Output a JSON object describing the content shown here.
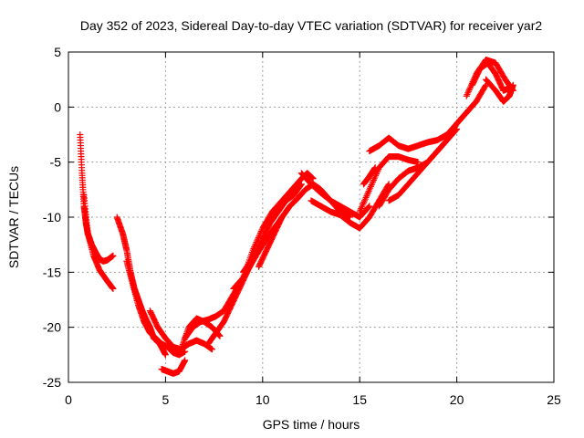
{
  "chart_data": {
    "type": "scatter",
    "title": "Day 352 of 2023, Sidereal Day-to-day VTEC variation (SDTVAR) for receiver yar2",
    "xlabel": "GPS time / hours",
    "ylabel": "SDTVAR / TECUs",
    "xlim": [
      0,
      25
    ],
    "ylim": [
      -25,
      5
    ],
    "xticks": [
      "0",
      "5",
      "10",
      "15",
      "20",
      "25"
    ],
    "yticks": [
      "-25",
      "-20",
      "-15",
      "-10",
      "-5",
      "0",
      "5"
    ],
    "grid": true,
    "marker": "+",
    "series_color": "#ff0000",
    "series": [
      {
        "x": [
          0.6,
          0.7,
          0.8,
          0.9,
          1.0,
          1.2,
          1.4,
          1.6,
          1.8,
          2.0,
          2.3
        ],
        "y": [
          -2.5,
          -6.0,
          -9.0,
          -10.5,
          -11.5,
          -12.5,
          -13.2,
          -13.8,
          -14.0,
          -13.9,
          -13.5
        ]
      },
      {
        "x": [
          0.8,
          1.0,
          1.3,
          1.6,
          2.0,
          2.3
        ],
        "y": [
          -8.0,
          -11.5,
          -13.5,
          -14.8,
          -15.8,
          -16.5
        ]
      },
      {
        "x": [
          2.5,
          2.8,
          3.0,
          3.2,
          3.4,
          3.6,
          3.8,
          4.0,
          4.2,
          4.4,
          4.7,
          5.0
        ],
        "y": [
          -10.0,
          -11.5,
          -13.0,
          -15.0,
          -16.5,
          -17.5,
          -18.5,
          -19.3,
          -20.0,
          -21.0,
          -21.5,
          -22.5
        ]
      },
      {
        "x": [
          3.0,
          3.3,
          3.6,
          3.9,
          4.2,
          4.5,
          4.8,
          5.1,
          5.4,
          5.7,
          6.0
        ],
        "y": [
          -14.0,
          -16.0,
          -18.0,
          -19.5,
          -20.5,
          -21.0,
          -21.5,
          -21.8,
          -22.3,
          -22.5,
          -22.2
        ]
      },
      {
        "x": [
          4.2,
          4.6,
          5.0,
          5.4,
          5.8,
          6.2,
          6.6,
          7.0,
          7.4
        ],
        "y": [
          -18.5,
          -20.0,
          -21.0,
          -21.8,
          -22.0,
          -21.5,
          -21.2,
          -21.5,
          -22.0
        ]
      },
      {
        "x": [
          4.8,
          5.1,
          5.4,
          5.7,
          6.0
        ],
        "y": [
          -23.8,
          -24.0,
          -24.2,
          -24.0,
          -23.0
        ]
      },
      {
        "x": [
          5.8,
          6.2,
          6.6,
          7.0,
          7.4,
          7.8
        ],
        "y": [
          -22.0,
          -20.0,
          -19.2,
          -19.5,
          -20.0,
          -20.8
        ]
      },
      {
        "x": [
          6.0,
          6.4,
          6.8,
          7.2,
          7.6,
          8.0,
          8.5,
          9.0,
          9.5,
          10.0
        ],
        "y": [
          -21.0,
          -20.0,
          -19.5,
          -19.3,
          -19.0,
          -18.5,
          -17.0,
          -15.5,
          -14.0,
          -12.5
        ]
      },
      {
        "x": [
          7.2,
          7.6,
          8.0,
          8.4,
          8.8,
          9.2,
          9.6,
          10.0,
          10.4,
          10.8,
          11.2,
          11.6,
          12.0
        ],
        "y": [
          -21.5,
          -20.5,
          -19.5,
          -18.0,
          -16.5,
          -15.0,
          -13.5,
          -12.0,
          -10.5,
          -9.5,
          -8.5,
          -8.0,
          -7.0
        ]
      },
      {
        "x": [
          8.5,
          9.0,
          9.5,
          10.0,
          10.5,
          11.0,
          11.5,
          12.0,
          12.3,
          12.6
        ],
        "y": [
          -16.5,
          -15.5,
          -13.0,
          -11.0,
          -9.5,
          -8.5,
          -7.5,
          -6.5,
          -6.0,
          -6.5
        ]
      },
      {
        "x": [
          9.0,
          9.4,
          9.8,
          10.2,
          10.6,
          11.0
        ],
        "y": [
          -15.0,
          -14.0,
          -13.0,
          -12.0,
          -11.0,
          -10.0
        ]
      },
      {
        "x": [
          9.8,
          10.2,
          10.6,
          11.0,
          11.4,
          11.8,
          12.2,
          12.6,
          13.0,
          13.5,
          14.0,
          14.5
        ],
        "y": [
          -14.5,
          -13.0,
          -11.5,
          -10.0,
          -9.0,
          -8.3,
          -7.5,
          -7.0,
          -7.5,
          -8.5,
          -9.5,
          -10.0
        ]
      },
      {
        "x": [
          12.0,
          12.5,
          13.0,
          13.5,
          14.0,
          14.5,
          15.0,
          15.5
        ],
        "y": [
          -6.0,
          -7.0,
          -7.8,
          -8.5,
          -9.0,
          -9.5,
          -10.0,
          -9.0
        ]
      },
      {
        "x": [
          12.5,
          13.0,
          13.5,
          14.0,
          14.5,
          15.0,
          15.5,
          16.0,
          16.5
        ],
        "y": [
          -8.5,
          -9.0,
          -9.5,
          -9.8,
          -10.5,
          -11.0,
          -10.0,
          -8.5,
          -7.0
        ]
      },
      {
        "x": [
          15.0,
          15.5,
          16.0,
          16.5,
          17.0,
          17.5,
          18.0
        ],
        "y": [
          -9.5,
          -7.5,
          -5.5,
          -4.5,
          -4.5,
          -4.8,
          -5.0
        ]
      },
      {
        "x": [
          15.2,
          15.5,
          15.8
        ],
        "y": [
          -7.0,
          -6.3,
          -5.5
        ]
      },
      {
        "x": [
          15.5,
          16.0,
          16.5,
          17.0,
          17.5,
          18.0,
          18.5,
          19.0,
          19.5,
          20.0,
          20.5,
          21.0,
          21.5
        ],
        "y": [
          -4.0,
          -3.5,
          -2.8,
          -3.5,
          -3.8,
          -3.5,
          -3.2,
          -3.0,
          -2.5,
          -1.5,
          -0.5,
          0.5,
          2.0
        ]
      },
      {
        "x": [
          16.0,
          16.5,
          17.0,
          17.5,
          18.0,
          18.5,
          19.0,
          19.5,
          20.0,
          20.5,
          21.0
        ],
        "y": [
          -9.0,
          -7.5,
          -6.5,
          -5.8,
          -5.5,
          -5.0,
          -4.0,
          -3.0,
          -1.5,
          -0.5,
          0.5
        ]
      },
      {
        "x": [
          16.5,
          17.0,
          17.5,
          18.0,
          18.5,
          19.0,
          19.5,
          20.0
        ],
        "y": [
          -8.5,
          -8.0,
          -7.0,
          -6.0,
          -5.0,
          -4.0,
          -3.0,
          -2.0
        ]
      },
      {
        "x": [
          20.5,
          21.0,
          21.5,
          22.0,
          22.5,
          22.9
        ],
        "y": [
          1.0,
          3.0,
          4.3,
          4.0,
          2.5,
          1.5
        ]
      },
      {
        "x": [
          20.8,
          21.2,
          21.6,
          22.0,
          22.4,
          22.8
        ],
        "y": [
          2.0,
          3.5,
          4.0,
          3.0,
          1.5,
          1.8
        ]
      },
      {
        "x": [
          21.5,
          22.0,
          22.4,
          22.7,
          22.9
        ],
        "y": [
          2.5,
          1.5,
          0.5,
          1.0,
          2.0
        ]
      }
    ]
  }
}
